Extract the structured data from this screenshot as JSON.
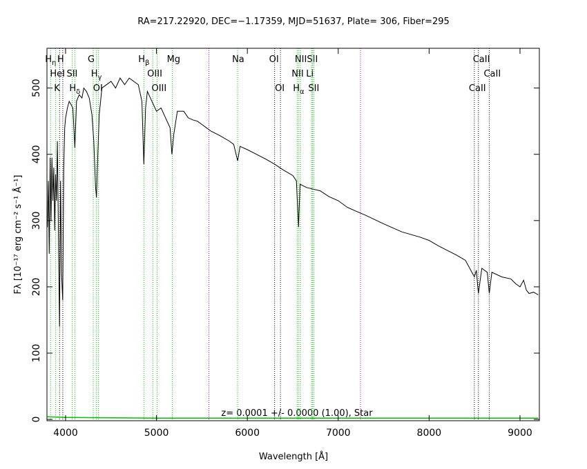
{
  "chart_data": {
    "type": "line",
    "title": "RA=217.22920, DEC=−1.17359, MJD=51637, Plate=  306, Fiber=295",
    "x_label": "Wavelength [Å]",
    "y_label": "Fλ [10⁻¹⁷ erg cm⁻² s⁻¹ Å⁻¹]",
    "annotation": "z= 0.0001 +/- 0.0000 (1.00), Star",
    "xlim": [
      3795,
      9213
    ],
    "ylim": [
      -2,
      560
    ],
    "xticks": [
      4000,
      5000,
      6000,
      7000,
      8000,
      9000
    ],
    "yticks": [
      0,
      100,
      200,
      300,
      400,
      500
    ],
    "series": [
      {
        "name": "flux",
        "color": "#000000",
        "x": [
          3800,
          3810,
          3820,
          3830,
          3840,
          3850,
          3860,
          3870,
          3880,
          3890,
          3900,
          3910,
          3920,
          3933,
          3945,
          3955,
          3968,
          3980,
          3990,
          4000,
          4020,
          4040,
          4060,
          4080,
          4102,
          4120,
          4150,
          4180,
          4200,
          4230,
          4260,
          4290,
          4310,
          4330,
          4340,
          4350,
          4370,
          4400,
          4450,
          4500,
          4550,
          4600,
          4650,
          4700,
          4750,
          4800,
          4840,
          4861,
          4880,
          4900,
          4950,
          5000,
          5050,
          5100,
          5150,
          5170,
          5190,
          5230,
          5300,
          5350,
          5400,
          5450,
          5500,
          5550,
          5600,
          5700,
          5800,
          5850,
          5893,
          5920,
          6000,
          6100,
          6200,
          6300,
          6400,
          6500,
          6540,
          6563,
          6580,
          6650,
          6800,
          6900,
          7000,
          7100,
          7200,
          7300,
          7500,
          7700,
          7900,
          8000,
          8100,
          8200,
          8300,
          8400,
          8498,
          8520,
          8542,
          8580,
          8640,
          8662,
          8690,
          8800,
          8900,
          8950,
          9000,
          9040,
          9070,
          9100,
          9150,
          9200
        ],
        "values": [
          290,
          360,
          250,
          395,
          300,
          395,
          330,
          380,
          285,
          370,
          330,
          420,
          300,
          140,
          360,
          220,
          180,
          380,
          440,
          455,
          470,
          480,
          475,
          470,
          410,
          480,
          490,
          485,
          500,
          495,
          485,
          460,
          420,
          350,
          335,
          380,
          460,
          500,
          505,
          510,
          500,
          515,
          505,
          515,
          510,
          505,
          480,
          385,
          470,
          495,
          480,
          465,
          470,
          455,
          440,
          400,
          430,
          465,
          465,
          455,
          452,
          450,
          445,
          440,
          435,
          428,
          420,
          415,
          390,
          412,
          407,
          400,
          393,
          385,
          376,
          368,
          360,
          290,
          355,
          350,
          345,
          336,
          330,
          320,
          314,
          308,
          295,
          283,
          275,
          270,
          262,
          255,
          248,
          240,
          215,
          225,
          190,
          228,
          222,
          190,
          222,
          215,
          212,
          205,
          200,
          210,
          195,
          190,
          192,
          188
        ]
      },
      {
        "name": "error",
        "color": "#00c000",
        "x": [
          3800,
          4000,
          5000,
          6000,
          7000,
          8000,
          9000,
          9200
        ],
        "values": [
          4,
          3,
          2,
          2,
          2,
          2,
          2,
          2
        ]
      }
    ],
    "lines": [
      {
        "label": "H",
        "sub": "η",
        "wavelength": 3835,
        "color": "#00cc00"
      },
      {
        "label": "H",
        "wavelength": 3969,
        "color": "#000000"
      },
      {
        "label": "HeI",
        "wavelength": 3889,
        "color": "#00cc00"
      },
      {
        "label": "SII",
        "wavelength": 4072,
        "color": "#00cc00"
      },
      {
        "label": "K",
        "wavelength": 3934,
        "color": "#000000"
      },
      {
        "label": "H",
        "sub": "δ",
        "wavelength": 4102,
        "color": "#00cc00"
      },
      {
        "label": "G",
        "wavelength": 4304,
        "color": "#00cc00"
      },
      {
        "label": "H",
        "sub": "γ",
        "wavelength": 4340,
        "color": "#00cc00"
      },
      {
        "label": "OI",
        "wavelength": 4363,
        "color": "#00cc00"
      },
      {
        "label": "H",
        "sub": "β",
        "wavelength": 4861,
        "color": "#00cc00"
      },
      {
        "label": "OIII",
        "wavelength": 4959,
        "color": "#00cc00"
      },
      {
        "label": "OIII",
        "wavelength": 5007,
        "color": "#00cc00"
      },
      {
        "label": "Mg",
        "wavelength": 5175,
        "color": "#00cc00"
      },
      {
        "label": "Na",
        "wavelength": 5893,
        "color": "#00cc00"
      },
      {
        "label": "OI",
        "wavelength": 6300,
        "color": "#000000"
      },
      {
        "label": "OI",
        "wavelength": 6364,
        "color": "#000000"
      },
      {
        "label": "NII",
        "wavelength": 6583,
        "color": "#00cc00"
      },
      {
        "label": "SII",
        "wavelength": 6716,
        "color": "#00cc00"
      },
      {
        "label": "NII",
        "wavelength": 6548,
        "color": "#00cc00"
      },
      {
        "label": "Li",
        "wavelength": 6707,
        "color": "#00cc00"
      },
      {
        "label": "H",
        "sub": "α",
        "wavelength": 6563,
        "color": "#00cc00"
      },
      {
        "label": "SII",
        "wavelength": 6731,
        "color": "#00cc00"
      },
      {
        "label": "CaII",
        "wavelength": 8542,
        "color": "#000000"
      },
      {
        "label": "CaII",
        "wavelength": 8662,
        "color": "#000000"
      },
      {
        "label": "CaII",
        "wavelength": 8498,
        "color": "#000000"
      },
      {
        "wavelength": 5577,
        "color": "#cc00cc"
      },
      {
        "wavelength": 7245,
        "color": "#cc00cc"
      }
    ]
  }
}
